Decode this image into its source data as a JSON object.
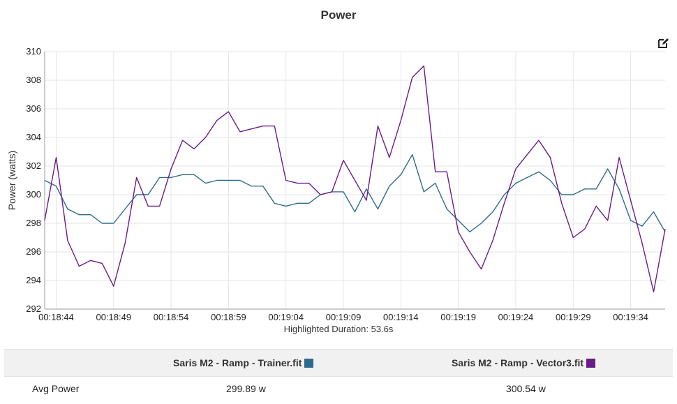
{
  "header": {
    "title": "Power"
  },
  "toolbar": {
    "edit_icon": "edit-square-icon"
  },
  "chart_data": {
    "type": "line",
    "title": "Power",
    "xlabel": "",
    "ylabel": "Power (watts)",
    "ylim": [
      292,
      310
    ],
    "yticks": [
      292,
      294,
      296,
      298,
      300,
      302,
      304,
      306,
      308,
      310
    ],
    "xlim": [
      "00:18:43",
      "00:19:37"
    ],
    "xticks": [
      "00:18:44",
      "00:18:49",
      "00:18:54",
      "00:18:59",
      "00:19:04",
      "00:19:09",
      "00:19:14",
      "00:19:19",
      "00:19:24",
      "00:19:29",
      "00:19:34"
    ],
    "grid": true,
    "x": [
      "00:18:43",
      "00:18:44",
      "00:18:45",
      "00:18:46",
      "00:18:47",
      "00:18:48",
      "00:18:49",
      "00:18:50",
      "00:18:51",
      "00:18:52",
      "00:18:53",
      "00:18:54",
      "00:18:55",
      "00:18:56",
      "00:18:57",
      "00:18:58",
      "00:18:59",
      "00:19:00",
      "00:19:01",
      "00:19:02",
      "00:19:03",
      "00:19:04",
      "00:19:05",
      "00:19:06",
      "00:19:07",
      "00:19:08",
      "00:19:09",
      "00:19:10",
      "00:19:11",
      "00:19:12",
      "00:19:13",
      "00:19:14",
      "00:19:15",
      "00:19:16",
      "00:19:17",
      "00:19:18",
      "00:19:19",
      "00:19:20",
      "00:19:21",
      "00:19:22",
      "00:19:23",
      "00:19:24",
      "00:19:25",
      "00:19:26",
      "00:19:27",
      "00:19:28",
      "00:19:29",
      "00:19:30",
      "00:19:31",
      "00:19:32",
      "00:19:33",
      "00:19:34",
      "00:19:35",
      "00:19:36",
      "00:19:37"
    ],
    "series": [
      {
        "name": "Saris M2 - Ramp - Trainer.fit",
        "color": "#2e6b8f",
        "values": [
          301.0,
          300.6,
          299.0,
          298.6,
          298.6,
          298.0,
          298.0,
          299.0,
          300.0,
          300.0,
          301.2,
          301.2,
          301.4,
          301.4,
          300.8,
          301.0,
          301.0,
          301.0,
          300.6,
          300.6,
          299.4,
          299.2,
          299.4,
          299.4,
          300.0,
          300.2,
          300.2,
          298.8,
          300.4,
          299.0,
          300.6,
          301.4,
          302.8,
          300.2,
          300.8,
          299.0,
          298.2,
          297.4,
          298.0,
          298.8,
          300.0,
          300.8,
          301.2,
          301.6,
          301.0,
          300.0,
          300.0,
          300.4,
          300.4,
          301.8,
          300.4,
          298.2,
          297.8,
          298.8,
          297.4
        ]
      },
      {
        "name": "Saris M2 - Ramp - Vector3.fit",
        "color": "#6a1b8a",
        "values": [
          298.2,
          302.6,
          296.8,
          295.0,
          295.4,
          295.2,
          293.6,
          296.6,
          301.2,
          299.2,
          299.2,
          301.8,
          303.8,
          303.2,
          304.0,
          305.2,
          305.8,
          304.4,
          304.6,
          304.8,
          304.8,
          301.0,
          300.8,
          300.8,
          300.0,
          300.2,
          302.4,
          301.0,
          299.6,
          304.8,
          302.6,
          305.2,
          308.2,
          309.0,
          301.6,
          301.6,
          297.4,
          296.0,
          294.8,
          296.8,
          299.4,
          301.8,
          302.8,
          303.8,
          302.6,
          299.4,
          297.0,
          297.6,
          299.2,
          298.2,
          302.6,
          299.6,
          296.6,
          293.2,
          297.6
        ]
      }
    ]
  },
  "footer": {
    "highlighted": "Highlighted Duration: 53.6s"
  },
  "stats": {
    "columns": [
      {
        "label": "Saris M2 - Ramp - Trainer.fit",
        "color": "#2e6b8f"
      },
      {
        "label": "Saris M2 - Ramp - Vector3.fit",
        "color": "#6a1b8a"
      }
    ],
    "rows": [
      {
        "label": "Avg Power",
        "values": [
          "299.89 w",
          "300.54 w"
        ]
      }
    ]
  }
}
